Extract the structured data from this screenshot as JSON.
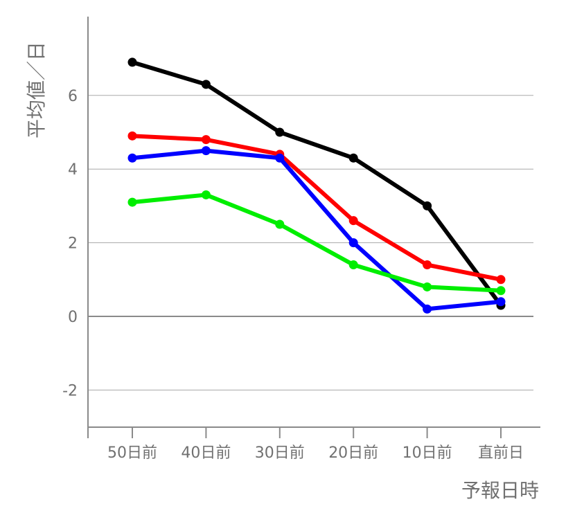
{
  "chart_data": {
    "type": "line",
    "categories": [
      "50日前",
      "40日前",
      "30日前",
      "20日前",
      "10日前",
      "直前日"
    ],
    "series": [
      {
        "color": "#000000",
        "values": [
          6.9,
          6.3,
          5.0,
          4.3,
          3.0,
          0.3
        ]
      },
      {
        "color": "#ff0000",
        "values": [
          4.9,
          4.8,
          4.4,
          2.6,
          1.4,
          1.0
        ]
      },
      {
        "color": "#0000ff",
        "values": [
          4.3,
          4.5,
          4.3,
          2.0,
          0.2,
          0.4
        ]
      },
      {
        "color": "#00ee00",
        "values": [
          3.1,
          3.3,
          2.5,
          1.4,
          0.8,
          0.7
        ]
      }
    ],
    "xlabel": "予報日時",
    "ylabel": "平均値／日",
    "ylim": [
      -3,
      8
    ],
    "yticks": [
      -2,
      0,
      2,
      4,
      6
    ],
    "grid": true
  }
}
